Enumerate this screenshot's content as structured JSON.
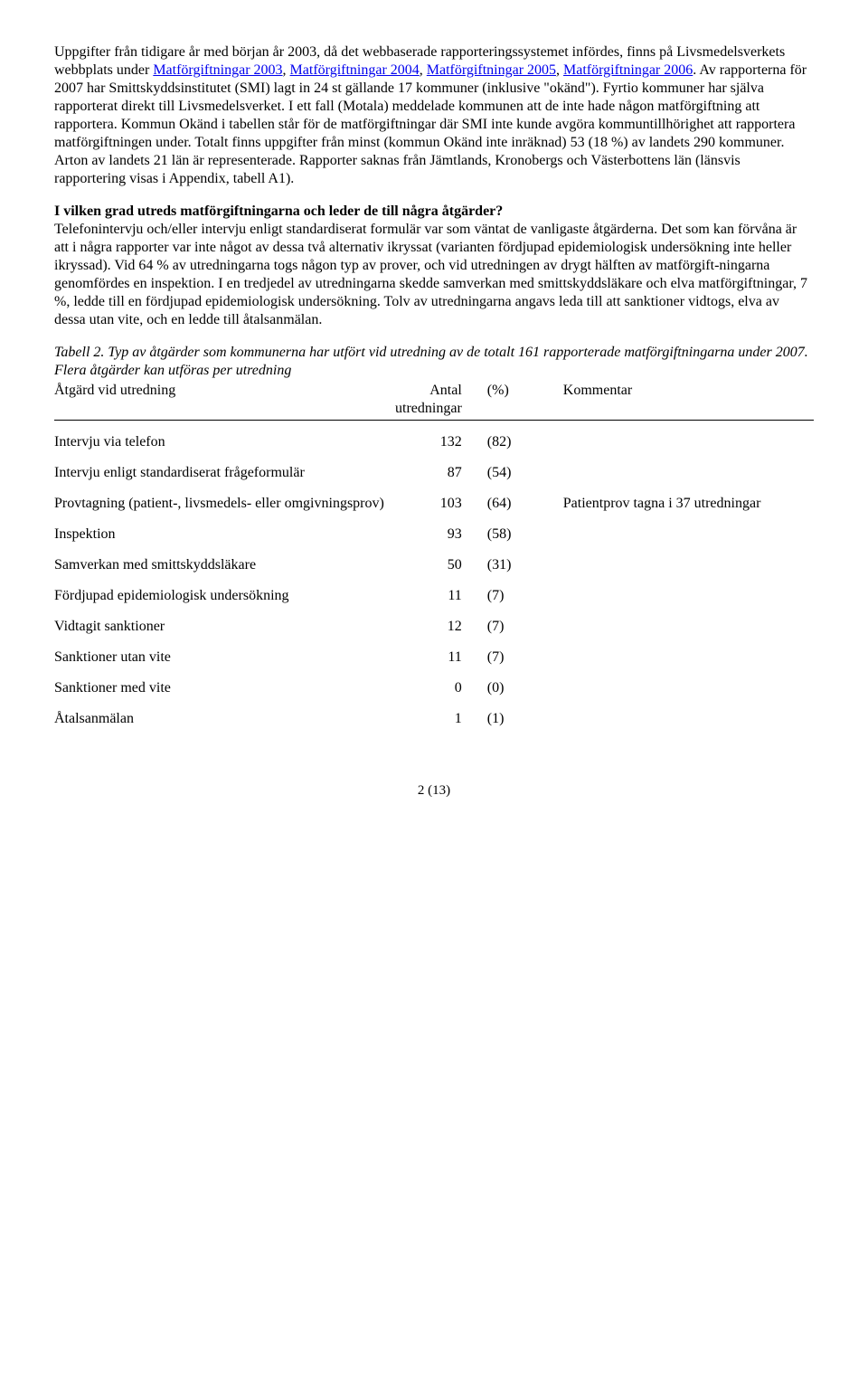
{
  "para1_pre": "Uppgifter från tidigare år med början år 2003, då det webbaserade rapporteringssystemet infördes, finns på Livsmedelsverkets webbplats under ",
  "link1": "Matförgiftningar 2003",
  "sep1": ", ",
  "link2": "Matförgiftningar 2004",
  "sep2": ", ",
  "link3": "Matförgiftningar 2005",
  "sep3": ", ",
  "link4": "Matförgiftningar 2006",
  "para1_post": ". Av rapporterna för 2007 har Smittskyddsinstitutet (SMI) lagt in 24 st gällande 17 kommuner (inklusive \"okänd\"). Fyrtio kommuner har själva rapporterat direkt till Livsmedelsverket. I ett fall (Motala) meddelade kommunen att de inte hade någon matförgiftning att rapportera. Kommun Okänd i tabellen står för de matförgiftningar där SMI inte kunde avgöra kommuntillhörighet att rapportera matförgiftningen under. Totalt finns uppgifter från minst (kommun Okänd inte inräknad) 53 (18 %) av landets 290 kommuner. Arton av landets 21 län är representerade. Rapporter saknas från Jämtlands, Kronobergs och Västerbottens län (länsvis rapportering visas i Appendix, tabell A1).",
  "heading2": "I vilken grad utreds matförgiftningarna och leder de till några åtgärder?",
  "para2": "Telefonintervju och/eller intervju enligt standardiserat formulär var som väntat de vanligaste åtgärderna. Det som kan förvåna är att i några rapporter var inte något av dessa två alternativ ikryssat (varianten fördjupad epidemiologisk undersökning inte heller ikryssad). Vid 64 % av utredningarna togs någon typ av prover, och vid utredningen av drygt hälften av matförgift-ningarna genomfördes en inspektion. I en tredjedel av utredningarna skedde samverkan med smittskyddsläkare och elva matförgiftningar, 7 %, ledde till en fördjupad epidemiologisk undersökning. Tolv av utredningarna angavs leda till att sanktioner vidtogs, elva av dessa utan vite, och en ledde till åtalsanmälan.",
  "tableCaption": "Tabell 2. Typ av åtgärder som kommunerna har utfört vid utredning av de totalt 161 rapporterade matförgiftningarna under 2007. Flera åtgärder kan utföras per utredning",
  "columns": {
    "c1a": "Åtgärd vid utredning",
    "c2a": "Antal",
    "c2b": "utredningar",
    "c3a": "(%)",
    "c4a": "Kommentar"
  },
  "rows": [
    {
      "action": "Intervju via telefon",
      "count": "132",
      "pct": "(82)",
      "comment": ""
    },
    {
      "action": "Intervju enligt standardiserat frågeformulär",
      "count": "87",
      "pct": "(54)",
      "comment": ""
    },
    {
      "action": "Provtagning (patient-, livsmedels- eller omgivningsprov)",
      "count": "103",
      "pct": "(64)",
      "comment": "Patientprov tagna i 37 utredningar"
    },
    {
      "action": "Inspektion",
      "count": "93",
      "pct": "(58)",
      "comment": ""
    },
    {
      "action": "Samverkan med smittskyddsläkare",
      "count": "50",
      "pct": "(31)",
      "comment": ""
    },
    {
      "action": "Fördjupad epidemiologisk undersökning",
      "count": "11",
      "pct": "(7)",
      "comment": ""
    },
    {
      "action": "Vidtagit sanktioner",
      "count": "12",
      "pct": "(7)",
      "comment": ""
    },
    {
      "action": "Sanktioner utan vite",
      "count": "11",
      "pct": "(7)",
      "comment": ""
    },
    {
      "action": "Sanktioner med vite",
      "count": "0",
      "pct": "(0)",
      "comment": ""
    },
    {
      "action": "Åtalsanmälan",
      "count": "1",
      "pct": "(1)",
      "comment": ""
    }
  ],
  "footer": "2 (13)"
}
